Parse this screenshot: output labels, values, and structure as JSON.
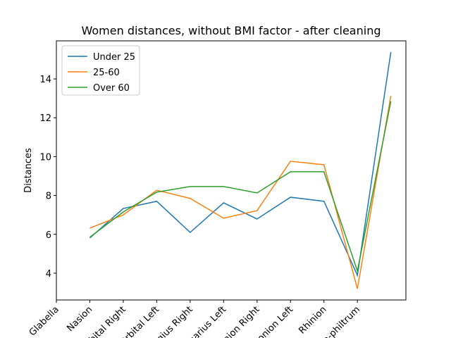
{
  "chart_data": {
    "type": "line",
    "title": "Women distances, without BMI factor - after cleaning",
    "ylabel": "Distances",
    "x": [
      1,
      2,
      3,
      4,
      5,
      6,
      7,
      8,
      9,
      10
    ],
    "xlim": [
      0,
      10.45
    ],
    "xticks": [
      {
        "value": 0,
        "label": "Glabella"
      },
      {
        "value": 1,
        "label": "Nasion"
      },
      {
        "value": 2,
        "label": "Orbital Right"
      },
      {
        "value": 3,
        "label": "Orbital Left"
      },
      {
        "value": 4,
        "label": "Zygius Right"
      },
      {
        "value": 5,
        "label": "Zygarius Left"
      },
      {
        "value": 6,
        "label": "Gonion Right"
      },
      {
        "value": 7,
        "label": "Gonion Left"
      },
      {
        "value": 8,
        "label": "Rhinion"
      },
      {
        "value": 9,
        "label": "Sn-philtrum"
      }
    ],
    "ylim": [
      2.62,
      15.96
    ],
    "yticks": [
      4,
      6,
      8,
      10,
      12,
      14
    ],
    "legend": "upper left",
    "series": [
      {
        "name": "Under 25",
        "color": "#1f77b4",
        "values": [
          5.81,
          7.33,
          7.7,
          6.1,
          7.62,
          6.79,
          7.91,
          7.7,
          3.89,
          15.38
        ]
      },
      {
        "name": "25-60",
        "color": "#ff7f0e",
        "values": [
          6.32,
          7.0,
          8.27,
          7.85,
          6.83,
          7.22,
          9.76,
          9.58,
          3.2,
          13.13
        ]
      },
      {
        "name": "Over 60",
        "color": "#2ca02c",
        "values": [
          5.85,
          7.15,
          8.17,
          8.46,
          8.46,
          8.13,
          9.22,
          9.22,
          4.11,
          12.85
        ]
      }
    ]
  }
}
